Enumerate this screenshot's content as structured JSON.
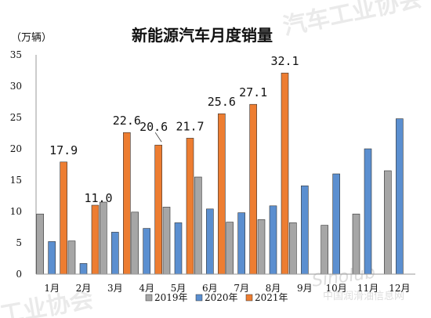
{
  "chart_data": {
    "type": "bar",
    "title": "新能源汽车月度销量",
    "ylabel": "（万辆）",
    "xlabel": "",
    "ylim": [
      0,
      35
    ],
    "yticks": [
      0,
      5,
      10,
      15,
      20,
      25,
      30,
      35
    ],
    "grid": false,
    "legend_position": "bottom",
    "categories": [
      "1月",
      "2月",
      "3月",
      "4月",
      "5月",
      "6月",
      "7月",
      "8月",
      "9月",
      "10月",
      "11月",
      "12月"
    ],
    "series": [
      {
        "name": "2019年",
        "color": "#a6a6a6",
        "values": [
          9.6,
          5.3,
          11.5,
          9.9,
          10.7,
          15.5,
          8.3,
          8.7,
          8.2,
          7.8,
          9.6,
          16.5
        ]
      },
      {
        "name": "2020年",
        "color": "#5b8fd0",
        "values": [
          5.2,
          1.7,
          6.7,
          7.3,
          8.2,
          10.4,
          9.8,
          10.9,
          14.1,
          16.0,
          20.0,
          24.8
        ]
      },
      {
        "name": "2021年",
        "color": "#ed7d31",
        "values": [
          17.9,
          11.0,
          22.6,
          20.6,
          21.7,
          25.6,
          27.1,
          32.1,
          null,
          null,
          null,
          null
        ]
      }
    ],
    "data_labels": [
      "17.9",
      "11.0",
      "22.6",
      "20.6",
      "21.7",
      "25.6",
      "27.1",
      "32.1"
    ]
  },
  "watermark": {
    "top_text": "汽车工业协会",
    "bottom_text": "工业协会",
    "brand_text": "Sinolub",
    "site_text": "中国润滑油信息网"
  }
}
